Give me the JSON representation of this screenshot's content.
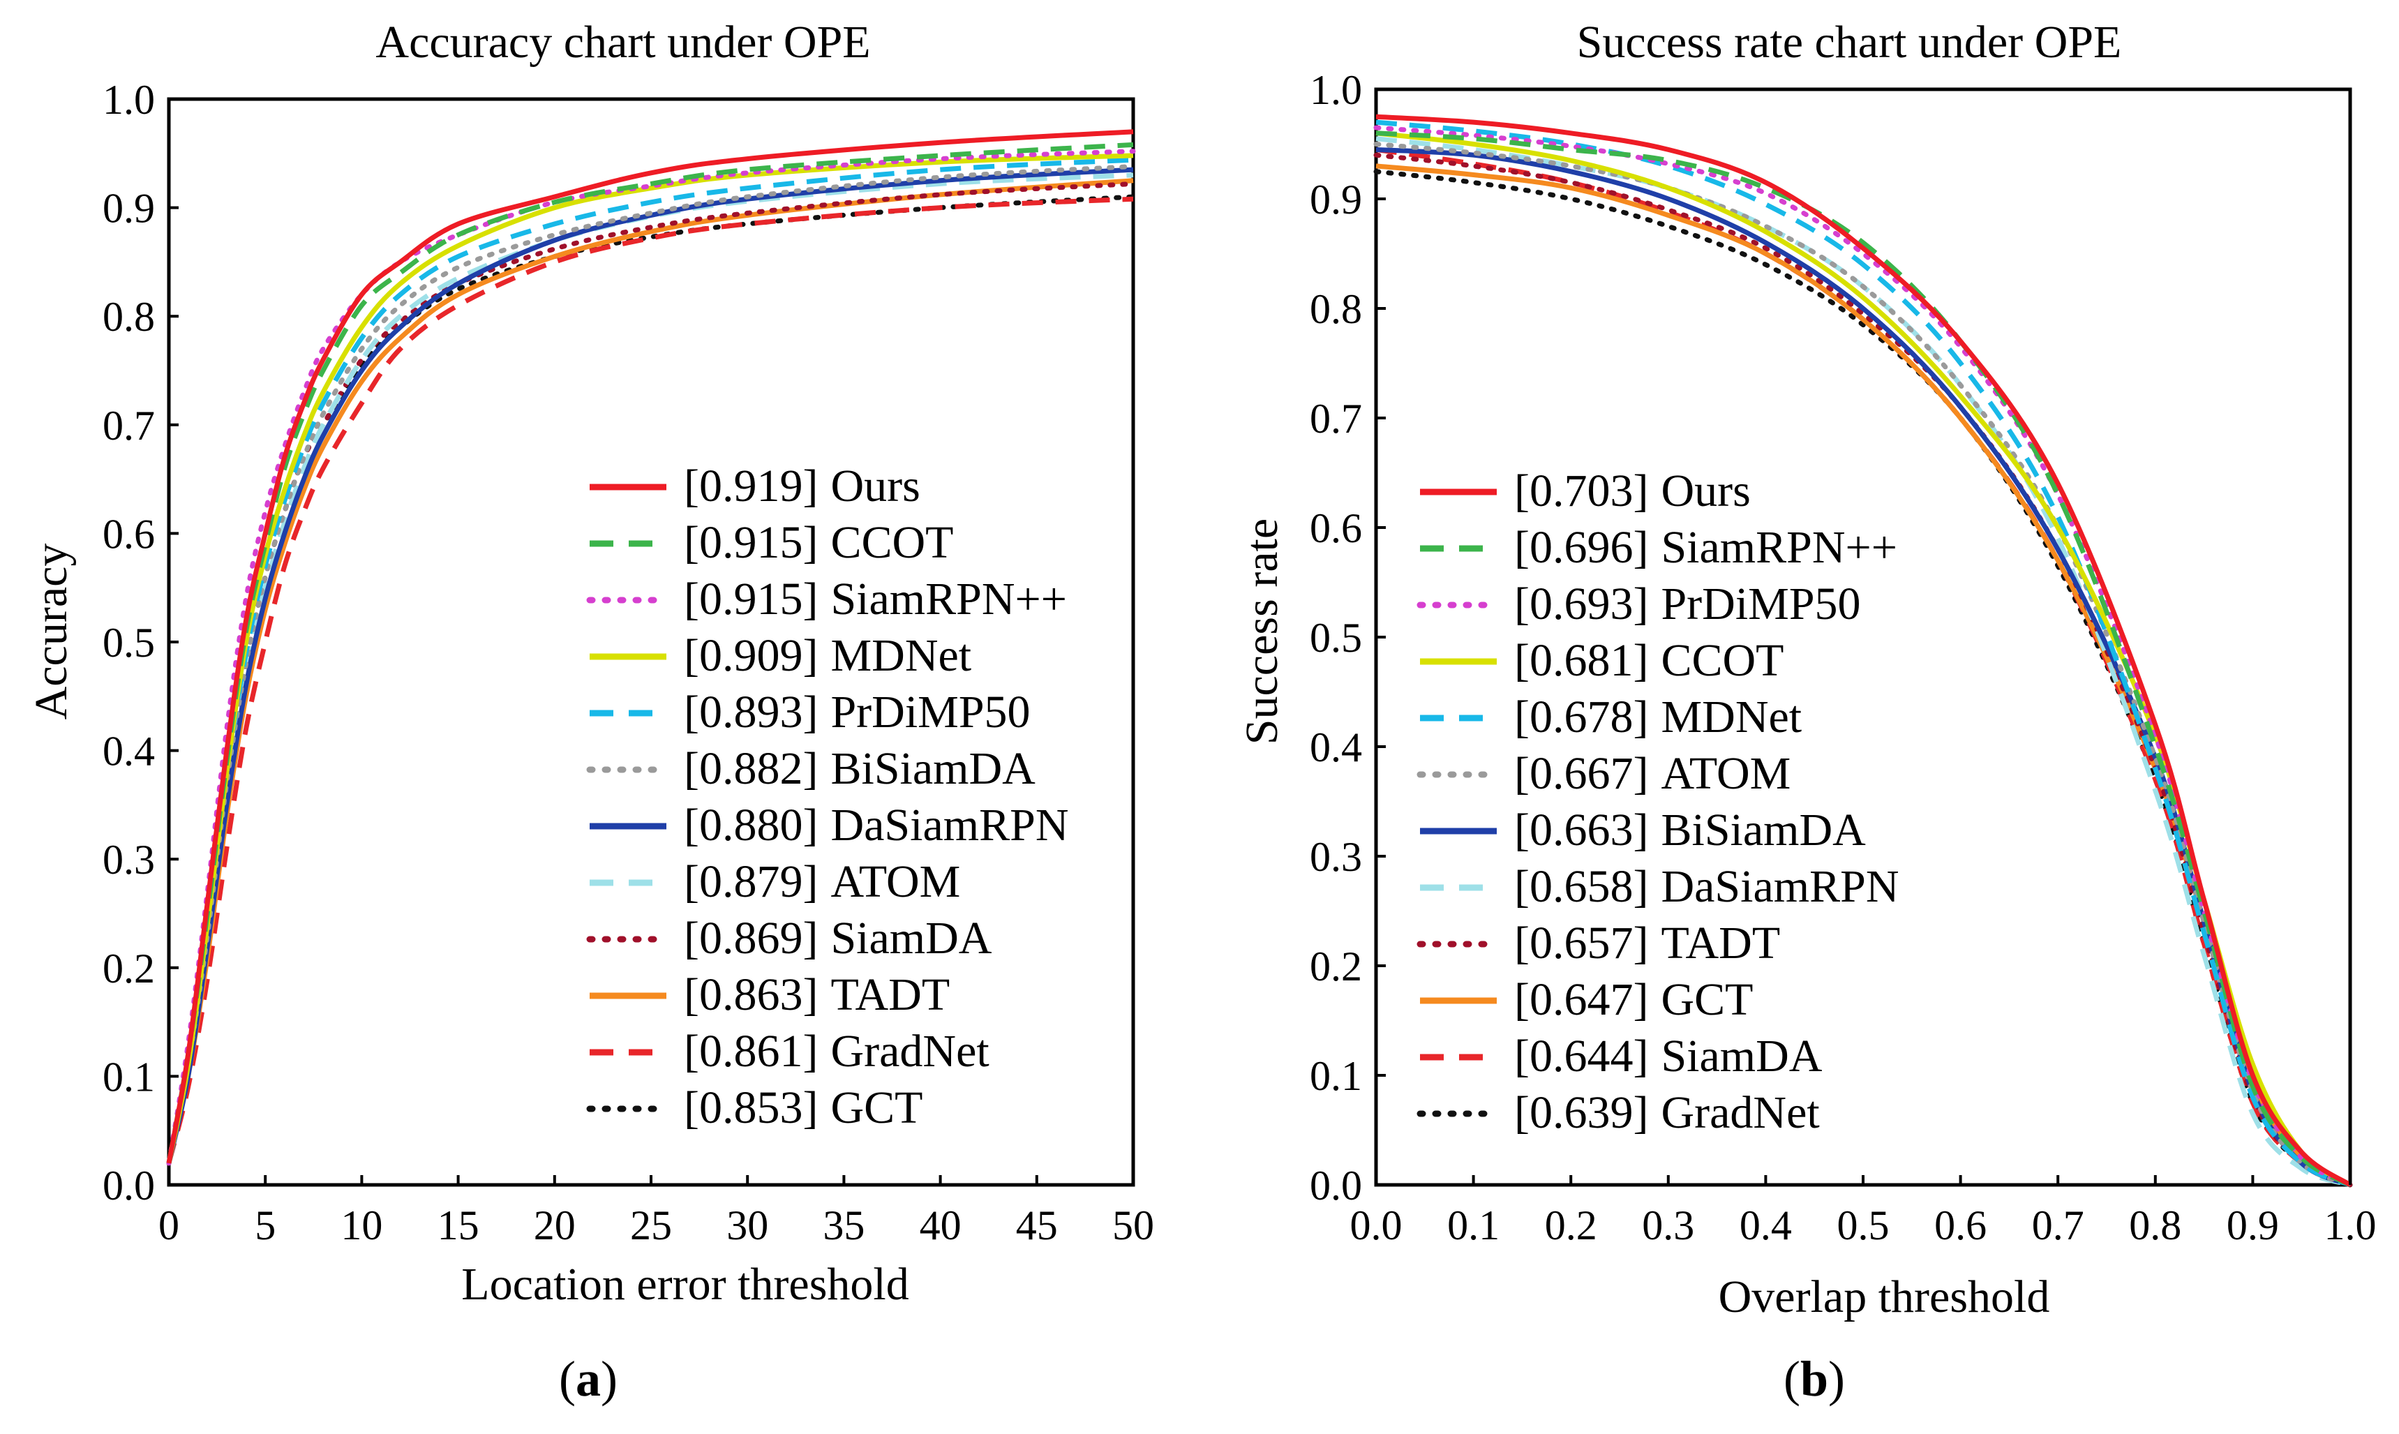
{
  "chart_data": [
    {
      "type": "line",
      "panel_label": "a",
      "title": "Accuracy chart under OPE",
      "xlabel": "Location error threshold",
      "ylabel": "Accuracy",
      "xlim": [
        0,
        50
      ],
      "ylim": [
        0,
        1.0
      ],
      "xticks": [
        "0",
        "5",
        "10",
        "15",
        "20",
        "25",
        "30",
        "35",
        "40",
        "45",
        "50"
      ],
      "yticks": [
        "0.0",
        "0.1",
        "0.2",
        "0.3",
        "0.4",
        "0.5",
        "0.6",
        "0.7",
        "0.8",
        "0.9",
        "1.0"
      ],
      "grid": false,
      "legend_position": "bottom-right",
      "series": [
        {
          "name": "Ours",
          "score": "[0.919]",
          "color": "#ee1c25",
          "style": "solid",
          "x": [
            0,
            1,
            2,
            3,
            4,
            5,
            6,
            7,
            8,
            10,
            12,
            15,
            20,
            25,
            30,
            40,
            50
          ],
          "y": [
            0.02,
            0.12,
            0.26,
            0.4,
            0.52,
            0.6,
            0.67,
            0.72,
            0.76,
            0.82,
            0.85,
            0.885,
            0.91,
            0.932,
            0.945,
            0.96,
            0.97
          ]
        },
        {
          "name": "CCOT",
          "score": "[0.915]",
          "color": "#3cb44b",
          "style": "dashed",
          "x": [
            0,
            1,
            2,
            3,
            4,
            5,
            6,
            7,
            8,
            10,
            12,
            15,
            20,
            25,
            30,
            40,
            50
          ],
          "y": [
            0.02,
            0.12,
            0.25,
            0.39,
            0.51,
            0.59,
            0.66,
            0.71,
            0.75,
            0.81,
            0.84,
            0.875,
            0.905,
            0.922,
            0.935,
            0.948,
            0.958
          ]
        },
        {
          "name": "SiamRPN++",
          "score": "[0.915]",
          "color": "#d63fcf",
          "style": "dotted",
          "x": [
            0,
            1,
            2,
            3,
            4,
            5,
            6,
            7,
            8,
            10,
            12,
            15,
            20,
            25,
            30,
            40,
            50
          ],
          "y": [
            0.02,
            0.13,
            0.27,
            0.42,
            0.54,
            0.62,
            0.68,
            0.73,
            0.77,
            0.82,
            0.85,
            0.875,
            0.905,
            0.92,
            0.932,
            0.945,
            0.952
          ]
        },
        {
          "name": "MDNet",
          "score": "[0.909]",
          "color": "#d8e000",
          "style": "solid",
          "x": [
            0,
            1,
            2,
            3,
            4,
            5,
            6,
            7,
            8,
            10,
            12,
            15,
            20,
            25,
            30,
            40,
            50
          ],
          "y": [
            0.02,
            0.11,
            0.24,
            0.38,
            0.5,
            0.58,
            0.64,
            0.69,
            0.73,
            0.79,
            0.83,
            0.865,
            0.9,
            0.918,
            0.93,
            0.942,
            0.948
          ]
        },
        {
          "name": "PrDiMP50",
          "score": "[0.893]",
          "color": "#18b8e8",
          "style": "dashed",
          "x": [
            0,
            1,
            2,
            3,
            4,
            5,
            6,
            7,
            8,
            10,
            12,
            15,
            20,
            25,
            30,
            40,
            50
          ],
          "y": [
            0.02,
            0.11,
            0.24,
            0.38,
            0.49,
            0.57,
            0.63,
            0.68,
            0.72,
            0.78,
            0.82,
            0.855,
            0.885,
            0.905,
            0.918,
            0.935,
            0.944
          ]
        },
        {
          "name": "BiSiamDA",
          "score": "[0.882]",
          "color": "#9a9a9a",
          "style": "dotted",
          "x": [
            0,
            1,
            2,
            3,
            4,
            5,
            6,
            7,
            8,
            10,
            12,
            15,
            20,
            25,
            30,
            40,
            50
          ],
          "y": [
            0.02,
            0.11,
            0.23,
            0.37,
            0.48,
            0.56,
            0.62,
            0.67,
            0.71,
            0.77,
            0.81,
            0.845,
            0.875,
            0.895,
            0.91,
            0.928,
            0.938
          ]
        },
        {
          "name": "DaSiamRPN",
          "score": "[0.880]",
          "color": "#1f3fa8",
          "style": "solid",
          "x": [
            0,
            1,
            2,
            3,
            4,
            5,
            6,
            7,
            8,
            10,
            12,
            15,
            20,
            25,
            30,
            40,
            50
          ],
          "y": [
            0.02,
            0.1,
            0.22,
            0.35,
            0.46,
            0.54,
            0.6,
            0.65,
            0.69,
            0.75,
            0.79,
            0.83,
            0.87,
            0.893,
            0.908,
            0.925,
            0.935
          ]
        },
        {
          "name": "ATOM",
          "score": "[0.879]",
          "color": "#9ee0e8",
          "style": "dashed",
          "x": [
            0,
            1,
            2,
            3,
            4,
            5,
            6,
            7,
            8,
            10,
            12,
            15,
            20,
            25,
            30,
            40,
            50
          ],
          "y": [
            0.02,
            0.11,
            0.23,
            0.36,
            0.47,
            0.55,
            0.61,
            0.66,
            0.7,
            0.76,
            0.8,
            0.835,
            0.87,
            0.892,
            0.906,
            0.922,
            0.93
          ]
        },
        {
          "name": "SiamDA",
          "score": "[0.869]",
          "color": "#a0102a",
          "style": "dotted",
          "x": [
            0,
            1,
            2,
            3,
            4,
            5,
            6,
            7,
            8,
            10,
            12,
            15,
            20,
            25,
            30,
            40,
            50
          ],
          "y": [
            0.02,
            0.11,
            0.23,
            0.37,
            0.48,
            0.56,
            0.62,
            0.67,
            0.7,
            0.76,
            0.795,
            0.83,
            0.862,
            0.882,
            0.895,
            0.912,
            0.922
          ]
        },
        {
          "name": "TADT",
          "score": "[0.863]",
          "color": "#f58a1f",
          "style": "solid",
          "x": [
            0,
            1,
            2,
            3,
            4,
            5,
            6,
            7,
            8,
            10,
            12,
            15,
            20,
            25,
            30,
            40,
            50
          ],
          "y": [
            0.02,
            0.1,
            0.21,
            0.34,
            0.45,
            0.53,
            0.59,
            0.64,
            0.68,
            0.74,
            0.78,
            0.82,
            0.855,
            0.878,
            0.893,
            0.912,
            0.925
          ]
        },
        {
          "name": "GradNet",
          "score": "[0.861]",
          "color": "#e8262a",
          "style": "dashed",
          "x": [
            0,
            1,
            2,
            3,
            4,
            5,
            6,
            7,
            8,
            10,
            12,
            15,
            20,
            25,
            30,
            40,
            50
          ],
          "y": [
            0.02,
            0.09,
            0.19,
            0.31,
            0.42,
            0.5,
            0.57,
            0.62,
            0.66,
            0.72,
            0.77,
            0.81,
            0.85,
            0.872,
            0.885,
            0.9,
            0.908
          ]
        },
        {
          "name": "GCT",
          "score": "[0.853]",
          "color": "#111111",
          "style": "dotted",
          "x": [
            0,
            1,
            2,
            3,
            4,
            5,
            6,
            7,
            8,
            10,
            12,
            15,
            20,
            25,
            30,
            40,
            50
          ],
          "y": [
            0.02,
            0.11,
            0.23,
            0.37,
            0.48,
            0.56,
            0.62,
            0.67,
            0.7,
            0.755,
            0.79,
            0.825,
            0.855,
            0.873,
            0.885,
            0.9,
            0.91
          ]
        }
      ]
    },
    {
      "type": "line",
      "panel_label": "b",
      "title": "Success rate chart under OPE",
      "xlabel": "Overlap threshold",
      "ylabel": "Success rate",
      "xlim": [
        0,
        1.0
      ],
      "ylim": [
        0,
        1.0
      ],
      "xticks": [
        "0.0",
        "0.1",
        "0.2",
        "0.3",
        "0.4",
        "0.5",
        "0.6",
        "0.7",
        "0.8",
        "0.9",
        "1.0"
      ],
      "yticks": [
        "0.0",
        "0.1",
        "0.2",
        "0.3",
        "0.4",
        "0.5",
        "0.6",
        "0.7",
        "0.8",
        "0.9",
        "1.0"
      ],
      "grid": false,
      "legend_position": "left-center",
      "series": [
        {
          "name": "Ours",
          "score": "[0.703]",
          "color": "#ee1c25",
          "style": "solid",
          "x": [
            0,
            0.1,
            0.2,
            0.3,
            0.4,
            0.5,
            0.6,
            0.7,
            0.8,
            0.85,
            0.9,
            0.95,
            1.0
          ],
          "y": [
            0.975,
            0.97,
            0.96,
            0.945,
            0.915,
            0.855,
            0.77,
            0.64,
            0.42,
            0.26,
            0.1,
            0.03,
            0.0
          ]
        },
        {
          "name": "SiamRPN++",
          "score": "[0.696]",
          "color": "#3cb44b",
          "style": "dashed",
          "x": [
            0,
            0.1,
            0.2,
            0.3,
            0.4,
            0.5,
            0.6,
            0.7,
            0.8,
            0.85,
            0.9,
            0.95,
            1.0
          ],
          "y": [
            0.96,
            0.955,
            0.945,
            0.935,
            0.91,
            0.86,
            0.77,
            0.63,
            0.4,
            0.25,
            0.09,
            0.025,
            0.0
          ]
        },
        {
          "name": "PrDiMP50",
          "score": "[0.693]",
          "color": "#d63fcf",
          "style": "dotted",
          "x": [
            0,
            0.1,
            0.2,
            0.3,
            0.4,
            0.5,
            0.6,
            0.7,
            0.8,
            0.85,
            0.9,
            0.95,
            1.0
          ],
          "y": [
            0.965,
            0.958,
            0.948,
            0.932,
            0.905,
            0.85,
            0.765,
            0.63,
            0.41,
            0.25,
            0.095,
            0.025,
            0.0
          ]
        },
        {
          "name": "CCOT",
          "score": "[0.681]",
          "color": "#d8e000",
          "style": "solid",
          "x": [
            0,
            0.1,
            0.2,
            0.3,
            0.4,
            0.5,
            0.6,
            0.7,
            0.8,
            0.85,
            0.9,
            0.95,
            1.0
          ],
          "y": [
            0.96,
            0.95,
            0.935,
            0.91,
            0.87,
            0.81,
            0.72,
            0.6,
            0.41,
            0.26,
            0.11,
            0.03,
            0.0
          ]
        },
        {
          "name": "MDNet",
          "score": "[0.678]",
          "color": "#18b8e8",
          "style": "dashed",
          "x": [
            0,
            0.1,
            0.2,
            0.3,
            0.4,
            0.5,
            0.6,
            0.7,
            0.8,
            0.85,
            0.9,
            0.95,
            1.0
          ],
          "y": [
            0.97,
            0.962,
            0.95,
            0.93,
            0.895,
            0.84,
            0.75,
            0.61,
            0.38,
            0.23,
            0.08,
            0.02,
            0.0
          ]
        },
        {
          "name": "ATOM",
          "score": "[0.667]",
          "color": "#9a9a9a",
          "style": "dotted",
          "x": [
            0,
            0.1,
            0.2,
            0.3,
            0.4,
            0.5,
            0.6,
            0.7,
            0.8,
            0.85,
            0.9,
            0.95,
            1.0
          ],
          "y": [
            0.95,
            0.942,
            0.93,
            0.91,
            0.875,
            0.82,
            0.73,
            0.6,
            0.39,
            0.24,
            0.085,
            0.02,
            0.0
          ]
        },
        {
          "name": "BiSiamDA",
          "score": "[0.663]",
          "color": "#1f3fa8",
          "style": "solid",
          "x": [
            0,
            0.1,
            0.2,
            0.3,
            0.4,
            0.5,
            0.6,
            0.7,
            0.8,
            0.85,
            0.9,
            0.95,
            1.0
          ],
          "y": [
            0.945,
            0.94,
            0.925,
            0.9,
            0.86,
            0.8,
            0.71,
            0.58,
            0.39,
            0.24,
            0.085,
            0.02,
            0.0
          ]
        },
        {
          "name": "DaSiamRPN",
          "score": "[0.658]",
          "color": "#9ee0e8",
          "style": "dashed",
          "x": [
            0,
            0.1,
            0.2,
            0.3,
            0.4,
            0.5,
            0.6,
            0.7,
            0.8,
            0.85,
            0.9,
            0.95,
            1.0
          ],
          "y": [
            0.955,
            0.945,
            0.93,
            0.91,
            0.875,
            0.82,
            0.73,
            0.59,
            0.36,
            0.21,
            0.065,
            0.015,
            0.0
          ]
        },
        {
          "name": "TADT",
          "score": "[0.657]",
          "color": "#a0102a",
          "style": "dotted",
          "x": [
            0,
            0.1,
            0.2,
            0.3,
            0.4,
            0.5,
            0.6,
            0.7,
            0.8,
            0.85,
            0.9,
            0.95,
            1.0
          ],
          "y": [
            0.94,
            0.93,
            0.915,
            0.89,
            0.855,
            0.795,
            0.71,
            0.58,
            0.38,
            0.23,
            0.08,
            0.02,
            0.0
          ]
        },
        {
          "name": "GCT",
          "score": "[0.647]",
          "color": "#f58a1f",
          "style": "solid",
          "x": [
            0,
            0.1,
            0.2,
            0.3,
            0.4,
            0.5,
            0.6,
            0.7,
            0.8,
            0.85,
            0.9,
            0.95,
            1.0
          ],
          "y": [
            0.93,
            0.922,
            0.91,
            0.885,
            0.85,
            0.79,
            0.7,
            0.57,
            0.38,
            0.24,
            0.09,
            0.025,
            0.0
          ]
        },
        {
          "name": "SiamDA",
          "score": "[0.644]",
          "color": "#e8262a",
          "style": "dashed",
          "x": [
            0,
            0.1,
            0.2,
            0.3,
            0.4,
            0.5,
            0.6,
            0.7,
            0.8,
            0.85,
            0.9,
            0.95,
            1.0
          ],
          "y": [
            0.945,
            0.932,
            0.915,
            0.888,
            0.85,
            0.79,
            0.7,
            0.57,
            0.37,
            0.22,
            0.075,
            0.02,
            0.0
          ]
        },
        {
          "name": "GradNet",
          "score": "[0.639]",
          "color": "#111111",
          "style": "dotted",
          "x": [
            0,
            0.1,
            0.2,
            0.3,
            0.4,
            0.5,
            0.6,
            0.7,
            0.8,
            0.85,
            0.9,
            0.95,
            1.0
          ],
          "y": [
            0.925,
            0.915,
            0.9,
            0.875,
            0.84,
            0.785,
            0.7,
            0.565,
            0.37,
            0.22,
            0.075,
            0.02,
            0.0
          ]
        }
      ]
    }
  ]
}
